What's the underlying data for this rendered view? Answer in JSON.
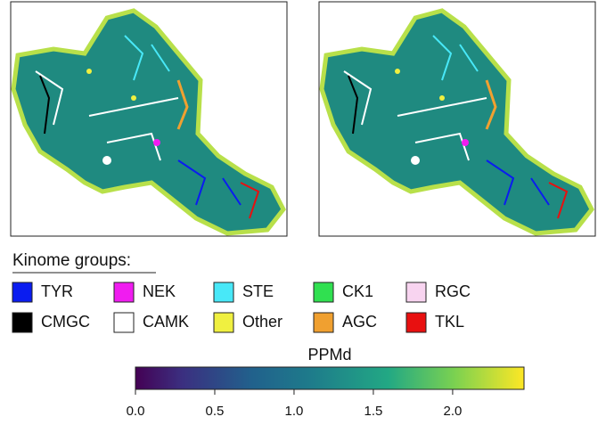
{
  "legend": {
    "title": "Kinome groups:",
    "groups": [
      {
        "name": "TYR",
        "color": "#0a1cf0"
      },
      {
        "name": "NEK",
        "color": "#f01cf0"
      },
      {
        "name": "STE",
        "color": "#48e8f8"
      },
      {
        "name": "CK1",
        "color": "#30e050"
      },
      {
        "name": "RGC",
        "color": "#f8d4f0"
      },
      {
        "name": "CMGC",
        "color": "#000000"
      },
      {
        "name": "CAMK",
        "color": "#ffffff"
      },
      {
        "name": "Other",
        "color": "#f0f040"
      },
      {
        "name": "AGC",
        "color": "#f0a030"
      },
      {
        "name": "TKL",
        "color": "#e81010"
      }
    ]
  },
  "colorbar": {
    "label": "PPMd",
    "lim": [
      0,
      2.45
    ],
    "ticks": [
      {
        "value": 0,
        "label": "0.0"
      },
      0.5,
      {
        "value": 1,
        "label": "1.0"
      },
      1.5,
      {
        "value": 2,
        "label": "2.0"
      }
    ]
  }
}
